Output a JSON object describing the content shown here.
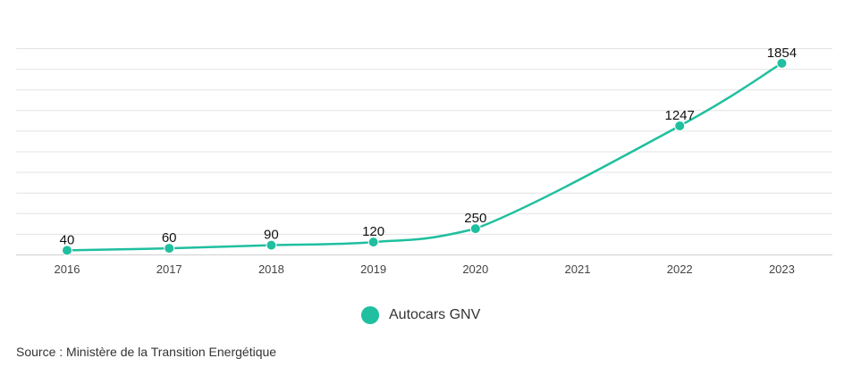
{
  "chart_data": {
    "type": "line",
    "categories": [
      "2016",
      "2017",
      "2018",
      "2019",
      "2020",
      "2021",
      "2022",
      "2023"
    ],
    "series": [
      {
        "name": "Autocars GNV",
        "values": [
          40,
          60,
          90,
          120,
          250,
          null,
          1247,
          1854
        ],
        "data_labels": [
          "40",
          "60",
          "90",
          "120",
          "250",
          "",
          "1247",
          "1854"
        ]
      }
    ],
    "ylim": [
      0,
      2000
    ],
    "y_tick_step": 200,
    "grid": true,
    "legend_position": "bottom-center",
    "line_color": "#1fbf9f"
  },
  "legend": {
    "label": "Autocars GNV",
    "color": "#1fbf9f"
  },
  "source": "Source : Ministère de la Transition Energétique"
}
